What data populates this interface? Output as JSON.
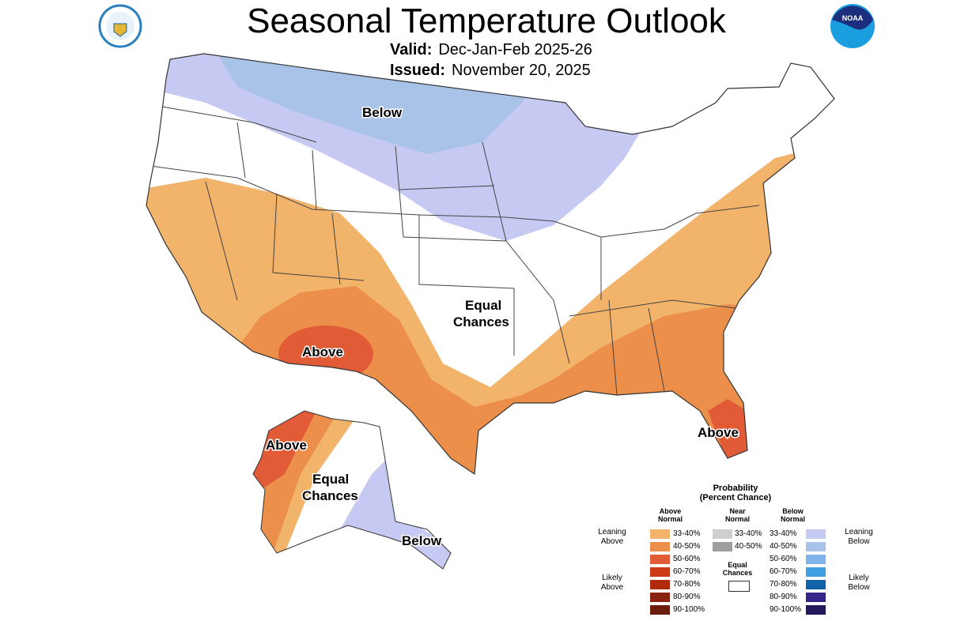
{
  "header": {
    "title": "Seasonal Temperature Outlook",
    "valid_label": "Valid:",
    "valid_value": "Dec-Jan-Feb 2025-26",
    "issued_label": "Issued:",
    "issued_value": "November 20, 2025",
    "logo_left": "U.S. Department of Commerce seal",
    "logo_right": "NOAA"
  },
  "map_labels": {
    "below_north": "Below",
    "equal_chances_1": "Equal",
    "equal_chances_2": "Chances",
    "above_sw": "Above",
    "above_fl": "Above",
    "ak_above": "Above",
    "ak_equal_1": "Equal",
    "ak_equal_2": "Chances",
    "ak_below": "Below"
  },
  "colors": {
    "above_33_40": "#f2b36b",
    "above_40_50": "#ec8f4a",
    "above_50_60": "#e05b36",
    "above_60_70": "#cc3a17",
    "above_70_80": "#b12a0c",
    "above_80_90": "#8a2410",
    "above_90_100": "#6b1d0c",
    "near_33_40": "#cfcfcf",
    "near_40_50": "#9e9e9e",
    "below_33_40": "#c6caf2",
    "below_40_50": "#a9c3e8",
    "below_50_60": "#7fb4ea",
    "below_60_70": "#3fa0e0",
    "below_70_80": "#1163a8",
    "below_80_90": "#36248a",
    "below_90_100": "#231a5c",
    "equal": "#ffffff"
  },
  "legend": {
    "title_1": "Probability",
    "title_2": "(Percent Chance)",
    "above_head_1": "Above",
    "above_head_2": "Normal",
    "near_head_1": "Near",
    "near_head_2": "Normal",
    "below_head_1": "Below",
    "below_head_2": "Normal",
    "above": [
      "33-40%",
      "40-50%",
      "50-60%",
      "60-70%",
      "70-80%",
      "80-90%",
      "90-100%"
    ],
    "near": [
      "33-40%",
      "40-50%"
    ],
    "below": [
      "33-40%",
      "40-50%",
      "50-60%",
      "60-70%",
      "70-80%",
      "80-90%",
      "90-100%"
    ],
    "leaning_above_1": "Leaning",
    "leaning_above_2": "Above",
    "likely_above_1": "Likely",
    "likely_above_2": "Above",
    "leaning_below_1": "Leaning",
    "leaning_below_2": "Below",
    "likely_below_1": "Likely",
    "likely_below_2": "Below",
    "equal_1": "Equal",
    "equal_2": "Chances"
  }
}
